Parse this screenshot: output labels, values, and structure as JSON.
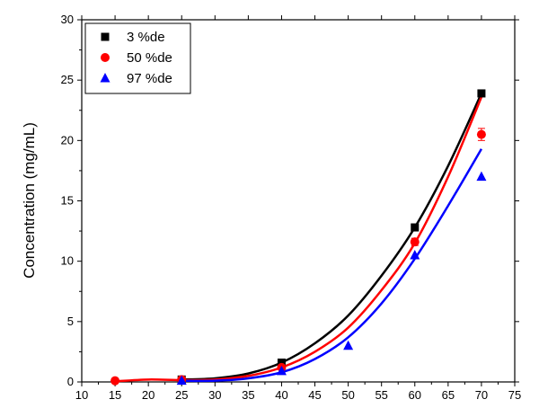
{
  "chart_data": {
    "type": "scatter",
    "title": "",
    "xlabel": "",
    "ylabel": "Concentration (mg/mL)",
    "xlim": [
      10,
      75
    ],
    "ylim": [
      0,
      30
    ],
    "x_ticks": [
      10,
      15,
      20,
      25,
      30,
      35,
      40,
      45,
      50,
      55,
      60,
      65,
      70,
      75
    ],
    "y_ticks": [
      0,
      5,
      10,
      15,
      20,
      25,
      30
    ],
    "grid": false,
    "legend_position": "top-left",
    "series": [
      {
        "name": "3 %de",
        "marker": "square",
        "color": "#000000",
        "x": [
          25,
          40,
          60,
          70
        ],
        "y": [
          0.2,
          1.6,
          12.8,
          23.9
        ],
        "fit_curve": {
          "x": [
            25,
            30,
            35,
            40,
            45,
            50,
            55,
            60,
            65,
            70
          ],
          "y": [
            0.2,
            0.3,
            0.7,
            1.6,
            3.2,
            5.5,
            8.8,
            12.8,
            17.9,
            23.9
          ]
        }
      },
      {
        "name": "50 %de",
        "marker": "circle",
        "color": "#ff0000",
        "x": [
          15,
          25,
          40,
          60,
          70
        ],
        "y": [
          0.1,
          0.2,
          1.2,
          11.6,
          20.5
        ],
        "error": [
          0,
          0,
          0,
          0.3,
          0.5
        ],
        "fit_curve": {
          "x": [
            15,
            20,
            25,
            30,
            35,
            40,
            45,
            50,
            55,
            60,
            65,
            70
          ],
          "y": [
            0.05,
            0.2,
            0.15,
            0.2,
            0.5,
            1.2,
            2.5,
            4.5,
            7.6,
            11.5,
            17.0,
            23.6
          ]
        }
      },
      {
        "name": "97 %de",
        "marker": "triangle",
        "color": "#0000ff",
        "x": [
          25,
          40,
          50,
          60,
          70
        ],
        "y": [
          0.1,
          0.9,
          3.0,
          10.5,
          17.0
        ],
        "fit_curve": {
          "x": [
            25,
            30,
            35,
            40,
            45,
            50,
            55,
            60,
            65,
            70
          ],
          "y": [
            0.1,
            0.1,
            0.3,
            0.8,
            1.9,
            3.7,
            6.5,
            10.2,
            14.6,
            19.3
          ]
        }
      }
    ]
  }
}
